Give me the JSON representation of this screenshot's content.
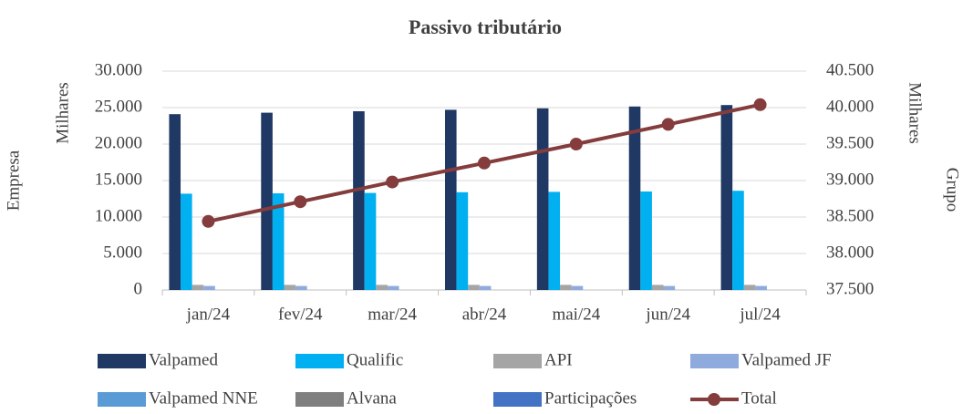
{
  "chart_data": {
    "type": "bar",
    "title": "Passivo tributário",
    "y_label": "Empresa",
    "y_unit": "Milhares",
    "y2_label": "Grupo",
    "y2_unit": "Milhares",
    "categories": [
      "jan/24",
      "fev/24",
      "mar/24",
      "abr/24",
      "mai/24",
      "jun/24",
      "jul/24"
    ],
    "series": [
      {
        "name": "Valpamed",
        "color": "#1f3864",
        "values": [
          24100,
          24300,
          24500,
          24700,
          24900,
          25150,
          25350
        ]
      },
      {
        "name": "Qualific",
        "color": "#00b0f0",
        "values": [
          13200,
          13250,
          13300,
          13400,
          13450,
          13500,
          13600
        ]
      },
      {
        "name": "API",
        "color": "#a5a5a5",
        "values": [
          700,
          700,
          700,
          700,
          700,
          700,
          700
        ]
      },
      {
        "name": "Valpamed JF",
        "color": "#8faadc",
        "values": [
          550,
          550,
          550,
          550,
          550,
          550,
          550
        ]
      },
      {
        "name": "Valpamed NNE",
        "color": "#5b9bd5",
        "values": [
          0,
          0,
          0,
          0,
          0,
          0,
          0
        ]
      },
      {
        "name": "Alvana",
        "color": "#7f7f7f",
        "values": [
          0,
          0,
          0,
          0,
          0,
          0,
          0
        ]
      },
      {
        "name": "Participações",
        "color": "#4472c4",
        "values": [
          0,
          0,
          0,
          0,
          0,
          0,
          0
        ]
      },
      {
        "name": "Total",
        "color": "#843c3c",
        "type": "line",
        "axis": "y2",
        "values": [
          38440,
          38710,
          38980,
          39240,
          39500,
          39770,
          40040
        ]
      }
    ],
    "ylim": [
      0,
      30000
    ],
    "yticks": [
      0,
      {
        "value": 5000,
        "label": "5.000"
      },
      {
        "value": 10000,
        "label": "10.000"
      },
      {
        "value": 15000,
        "label": "15.000"
      },
      {
        "value": 20000,
        "label": "20.000"
      },
      {
        "value": 25000,
        "label": "25.000"
      },
      {
        "value": 30000,
        "label": "30.000"
      }
    ],
    "y2lim": [
      37500,
      40500
    ],
    "y2ticks": [
      {
        "value": 37500,
        "label": "37.500"
      },
      {
        "value": 38000,
        "label": "38.000"
      },
      {
        "value": 38500,
        "label": "38.500"
      },
      {
        "value": 39000,
        "label": "39.000"
      },
      {
        "value": 39500,
        "label": "39.500"
      },
      {
        "value": 40000,
        "label": "40.000"
      },
      {
        "value": 40500,
        "label": "40.500"
      }
    ],
    "grid": true,
    "legend": "bottom"
  }
}
